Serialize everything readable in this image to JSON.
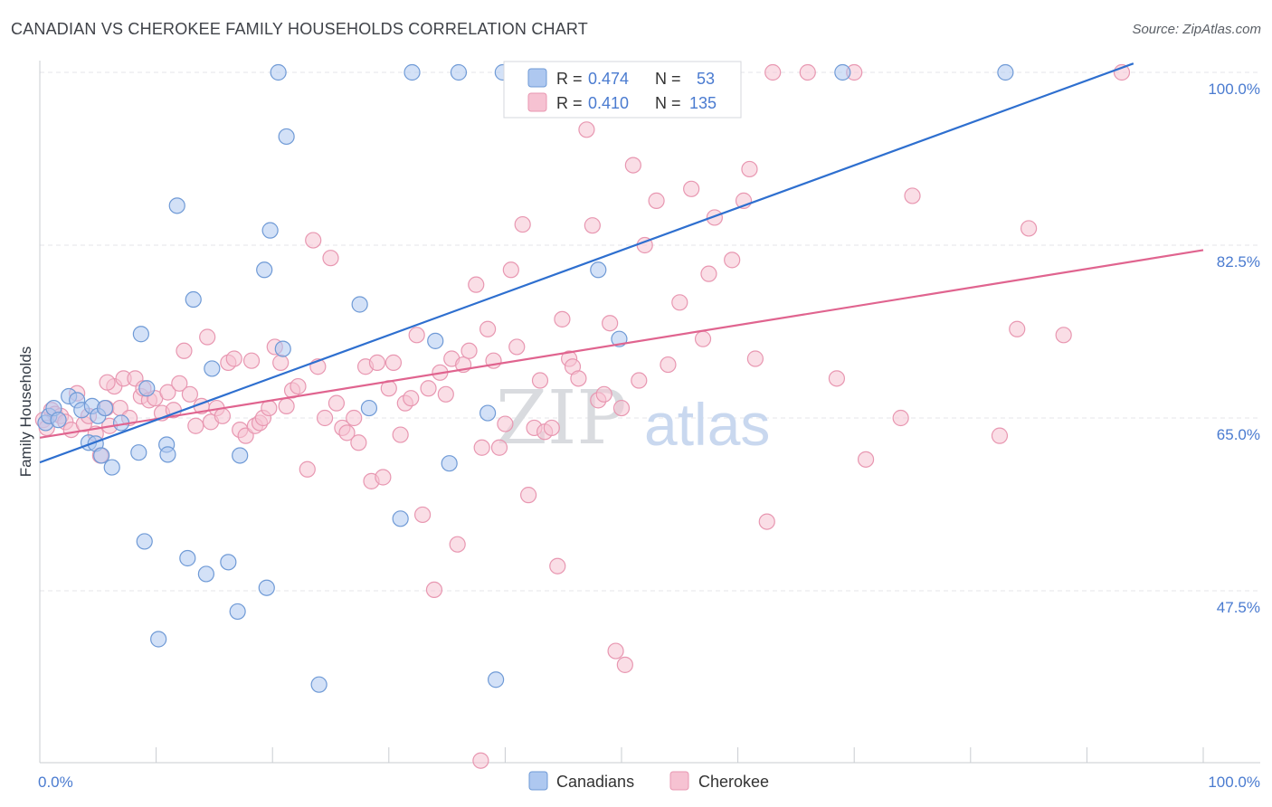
{
  "header": {
    "title": "CANADIAN VS CHEROKEE FAMILY HOUSEHOLDS CORRELATION CHART",
    "source": "Source: ZipAtlas.com"
  },
  "watermark": {
    "zip": "ZIP",
    "atlas": "atlas"
  },
  "legend": {
    "r_label": "R =",
    "n_label": "N =",
    "rows": [
      {
        "name": "Canadians",
        "r": "0.474",
        "n": "53",
        "color": "#7fa8e0"
      },
      {
        "name": "Cherokee",
        "r": "0.410",
        "n": "135",
        "color": "#ee9bb5"
      }
    ]
  },
  "colors": {
    "canadians_fill": "#aec8f0",
    "canadians_stroke": "#6f9ad6",
    "canadians_line": "#2e6fcf",
    "cherokee_fill": "#f6c2d2",
    "cherokee_stroke": "#e897b1",
    "cherokee_line": "#e0648f",
    "axis_label": "#4a7bd0"
  },
  "chart_data": {
    "type": "scatter",
    "title": "CANADIAN VS CHEROKEE FAMILY HOUSEHOLDS CORRELATION CHART",
    "ylabel": "Family Households",
    "xlabel": "",
    "xlim": [
      0,
      100
    ],
    "ylim": [
      30,
      101
    ],
    "x_tick_labels": [
      "0.0%",
      "100.0%"
    ],
    "y_ticks": [
      47.5,
      65.0,
      82.5,
      100.0
    ],
    "y_tick_labels": [
      "47.5%",
      "65.0%",
      "82.5%",
      "100.0%"
    ],
    "grid": true,
    "legend_position": "top-center",
    "series": [
      {
        "name": "Canadians",
        "r": 0.474,
        "n": 53,
        "trendline": {
          "x": [
            0,
            94
          ],
          "y": [
            60.5,
            100.9
          ]
        },
        "points": [
          [
            0.5,
            64.5
          ],
          [
            0.8,
            65.2
          ],
          [
            1.2,
            66.0
          ],
          [
            1.6,
            64.8
          ],
          [
            2.5,
            67.2
          ],
          [
            3.2,
            66.8
          ],
          [
            3.6,
            65.8
          ],
          [
            4.2,
            62.5
          ],
          [
            4.5,
            66.2
          ],
          [
            4.8,
            62.4
          ],
          [
            5.3,
            61.2
          ],
          [
            5.0,
            65.2
          ],
          [
            5.6,
            66.0
          ],
          [
            6.2,
            60.0
          ],
          [
            7.0,
            64.5
          ],
          [
            8.5,
            61.5
          ],
          [
            9.2,
            68.0
          ],
          [
            8.7,
            73.5
          ],
          [
            10.9,
            62.3
          ],
          [
            11.0,
            61.3
          ],
          [
            11.8,
            86.5
          ],
          [
            12.7,
            50.8
          ],
          [
            13.2,
            77.0
          ],
          [
            14.3,
            49.2
          ],
          [
            14.8,
            70.0
          ],
          [
            16.2,
            50.4
          ],
          [
            17.0,
            45.4
          ],
          [
            17.2,
            61.2
          ],
          [
            19.3,
            80.0
          ],
          [
            19.5,
            47.8
          ],
          [
            19.8,
            84.0
          ],
          [
            20.5,
            100.0
          ],
          [
            20.9,
            72.0
          ],
          [
            21.2,
            93.5
          ],
          [
            24.0,
            38.0
          ],
          [
            27.5,
            76.5
          ],
          [
            28.3,
            66.0
          ],
          [
            31.0,
            54.8
          ],
          [
            32.0,
            100.0
          ],
          [
            34.0,
            72.8
          ],
          [
            35.2,
            60.4
          ],
          [
            36.0,
            100.0
          ],
          [
            38.5,
            65.5
          ],
          [
            39.2,
            38.5
          ],
          [
            39.8,
            100.0
          ],
          [
            45.0,
            100.0
          ],
          [
            48.0,
            80.0
          ],
          [
            49.8,
            73.0
          ],
          [
            52.0,
            100.0
          ],
          [
            69.0,
            100.0
          ],
          [
            83.0,
            100.0
          ],
          [
            9.0,
            52.5
          ],
          [
            10.2,
            42.6
          ]
        ]
      },
      {
        "name": "Cherokee",
        "r": 0.41,
        "n": 135,
        "trendline": {
          "x": [
            0,
            100
          ],
          "y": [
            63.0,
            82.0
          ]
        },
        "points": [
          [
            0.3,
            64.8
          ],
          [
            0.6,
            64.0
          ],
          [
            1.0,
            65.8
          ],
          [
            1.3,
            65.4
          ],
          [
            1.8,
            65.2
          ],
          [
            2.2,
            64.6
          ],
          [
            2.7,
            63.8
          ],
          [
            3.2,
            67.5
          ],
          [
            3.8,
            64.4
          ],
          [
            4.2,
            65.2
          ],
          [
            4.8,
            63.4
          ],
          [
            5.2,
            61.2
          ],
          [
            5.7,
            66.0
          ],
          [
            6.0,
            64.2
          ],
          [
            6.4,
            68.2
          ],
          [
            6.9,
            66.0
          ],
          [
            7.2,
            69.0
          ],
          [
            7.7,
            65.0
          ],
          [
            8.2,
            69.0
          ],
          [
            8.7,
            67.2
          ],
          [
            8.9,
            68.0
          ],
          [
            9.4,
            66.8
          ],
          [
            9.9,
            67.0
          ],
          [
            10.5,
            65.5
          ],
          [
            11.0,
            67.6
          ],
          [
            11.5,
            65.8
          ],
          [
            12.0,
            68.5
          ],
          [
            12.4,
            71.8
          ],
          [
            12.9,
            67.4
          ],
          [
            13.4,
            64.2
          ],
          [
            13.9,
            66.2
          ],
          [
            14.4,
            73.2
          ],
          [
            14.7,
            64.6
          ],
          [
            15.2,
            66.0
          ],
          [
            15.7,
            65.2
          ],
          [
            16.2,
            70.6
          ],
          [
            16.7,
            71.0
          ],
          [
            17.2,
            63.8
          ],
          [
            17.7,
            63.2
          ],
          [
            18.2,
            70.8
          ],
          [
            18.5,
            64.2
          ],
          [
            18.9,
            64.5
          ],
          [
            19.2,
            65.0
          ],
          [
            19.7,
            66.0
          ],
          [
            20.2,
            72.2
          ],
          [
            20.7,
            70.6
          ],
          [
            21.2,
            66.2
          ],
          [
            21.7,
            67.8
          ],
          [
            22.2,
            68.2
          ],
          [
            23.0,
            59.8
          ],
          [
            23.5,
            83.0
          ],
          [
            23.9,
            70.2
          ],
          [
            24.5,
            65.0
          ],
          [
            25.0,
            81.2
          ],
          [
            25.5,
            66.5
          ],
          [
            26.0,
            64.0
          ],
          [
            26.4,
            63.5
          ],
          [
            27.0,
            65.0
          ],
          [
            27.4,
            62.5
          ],
          [
            28.0,
            70.2
          ],
          [
            28.5,
            58.6
          ],
          [
            29.0,
            70.6
          ],
          [
            29.5,
            59.0
          ],
          [
            30.0,
            68.0
          ],
          [
            30.4,
            70.6
          ],
          [
            31.0,
            63.3
          ],
          [
            31.4,
            66.5
          ],
          [
            31.9,
            67.0
          ],
          [
            32.4,
            73.4
          ],
          [
            32.9,
            55.2
          ],
          [
            33.4,
            68.0
          ],
          [
            33.9,
            47.6
          ],
          [
            34.4,
            69.6
          ],
          [
            34.9,
            67.4
          ],
          [
            35.4,
            71.0
          ],
          [
            35.9,
            52.2
          ],
          [
            36.4,
            70.4
          ],
          [
            36.9,
            71.8
          ],
          [
            37.5,
            78.5
          ],
          [
            38.0,
            62.0
          ],
          [
            38.5,
            74.0
          ],
          [
            39.0,
            70.8
          ],
          [
            39.5,
            62.0
          ],
          [
            40.0,
            64.4
          ],
          [
            40.5,
            80.0
          ],
          [
            41.0,
            72.2
          ],
          [
            41.5,
            84.6
          ],
          [
            42.0,
            57.2
          ],
          [
            42.5,
            64.0
          ],
          [
            43.0,
            68.8
          ],
          [
            43.4,
            63.6
          ],
          [
            44.0,
            64.0
          ],
          [
            44.5,
            50.0
          ],
          [
            44.9,
            75.0
          ],
          [
            45.5,
            71.0
          ],
          [
            45.8,
            70.2
          ],
          [
            46.3,
            69.0
          ],
          [
            47.0,
            94.2
          ],
          [
            47.5,
            84.5
          ],
          [
            48.0,
            66.8
          ],
          [
            48.5,
            67.4
          ],
          [
            49.0,
            74.6
          ],
          [
            49.5,
            41.4
          ],
          [
            50.0,
            66.0
          ],
          [
            50.3,
            40.0
          ],
          [
            51.0,
            90.6
          ],
          [
            51.5,
            68.8
          ],
          [
            52.0,
            82.5
          ],
          [
            53.0,
            87.0
          ],
          [
            54.0,
            70.4
          ],
          [
            55.0,
            76.7
          ],
          [
            56.0,
            88.2
          ],
          [
            57.0,
            73.0
          ],
          [
            57.5,
            79.6
          ],
          [
            58.0,
            85.3
          ],
          [
            59.5,
            81.0
          ],
          [
            60.5,
            87.0
          ],
          [
            61.0,
            90.2
          ],
          [
            61.5,
            71.0
          ],
          [
            62.5,
            54.5
          ],
          [
            63.0,
            100.0
          ],
          [
            66.0,
            100.0
          ],
          [
            68.5,
            69.0
          ],
          [
            70.0,
            100.0
          ],
          [
            71.0,
            60.8
          ],
          [
            74.0,
            65.0
          ],
          [
            75.0,
            87.5
          ],
          [
            82.5,
            63.2
          ],
          [
            84.0,
            74.0
          ],
          [
            85.0,
            84.2
          ],
          [
            88.0,
            73.4
          ],
          [
            93.0,
            100.0
          ],
          [
            37.9,
            30.3
          ],
          [
            50.6,
            100.0
          ],
          [
            5.8,
            68.6
          ]
        ]
      }
    ]
  }
}
